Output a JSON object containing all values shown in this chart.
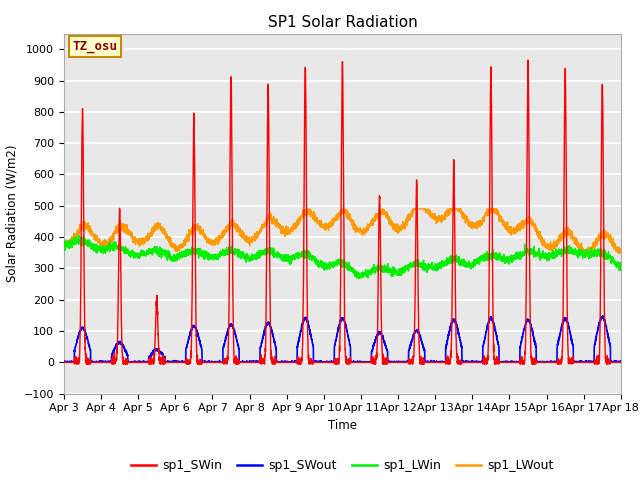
{
  "title": "SP1 Solar Radiation",
  "ylabel": "Solar Radiation (W/m2)",
  "xlabel": "Time",
  "annotation": "TZ_osu",
  "ylim": [
    -100,
    1050
  ],
  "background_color": "#ffffff",
  "plot_bg_color": "#e8e8e8",
  "grid_color": "#ffffff",
  "colors": {
    "SWin": "#ff0000",
    "SWout": "#0000ff",
    "LWin": "#00ee00",
    "LWout": "#ff9900"
  },
  "legend_labels": [
    "sp1_SWin",
    "sp1_SWout",
    "sp1_LWin",
    "sp1_LWout"
  ],
  "xtick_labels": [
    "Apr 3",
    "Apr 4",
    "Apr 5",
    "Apr 6",
    "Apr 7",
    "Apr 8",
    "Apr 9",
    "Apr 10",
    "Apr 11",
    "Apr 12",
    "Apr 13",
    "Apr 14",
    "Apr 15",
    "Apr 16",
    "Apr 17",
    "Apr 18"
  ],
  "n_days": 15,
  "points_per_day": 288,
  "SWin_peaks": [
    810,
    490,
    200,
    780,
    910,
    880,
    940,
    960,
    530,
    570,
    640,
    940,
    940,
    940,
    890
  ],
  "SWout_plateau": [
    110,
    65,
    40,
    115,
    120,
    125,
    140,
    140,
    95,
    100,
    135,
    140,
    135,
    140,
    145
  ]
}
